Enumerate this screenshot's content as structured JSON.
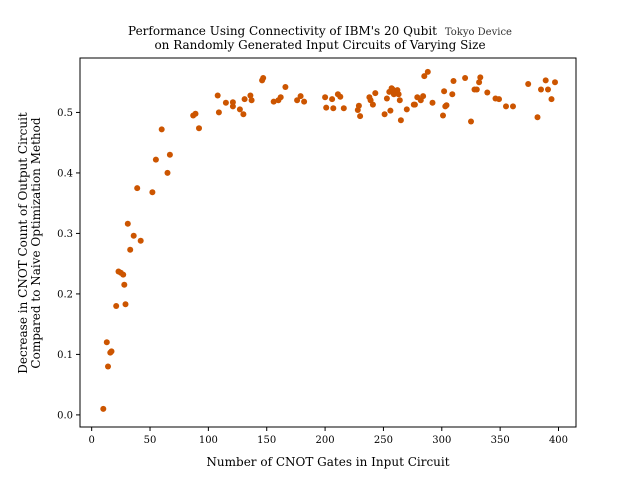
{
  "chart_data": {
    "type": "scatter",
    "title_line1": "Performance Using Connectivity of IBM's 20 Qubit",
    "title_device": "Tokyo Device",
    "title_line2": "on Randomly Generated Input Circuits of Varying Size",
    "xlabel": "Number of CNOT Gates in Input Circuit",
    "ylabel_line1": "Decrease in CNOT Count of Output Circuit",
    "ylabel_line2": "Compared to Naive Optimization Method",
    "xlim": [
      -10,
      415
    ],
    "ylim": [
      -0.02,
      0.59
    ],
    "xticks": [
      0,
      50,
      100,
      150,
      200,
      250,
      300,
      350,
      400
    ],
    "yticks": [
      0.0,
      0.1,
      0.2,
      0.3,
      0.4,
      0.5
    ],
    "xtick_labels": [
      "0",
      "50",
      "100",
      "150",
      "200",
      "250",
      "300",
      "350",
      "400"
    ],
    "ytick_labels": [
      "0.0",
      "0.1",
      "0.2",
      "0.3",
      "0.4",
      "0.5"
    ],
    "marker_color": "#cc5500",
    "points": [
      [
        10,
        0.01
      ],
      [
        13,
        0.12
      ],
      [
        14,
        0.08
      ],
      [
        16,
        0.103
      ],
      [
        17,
        0.105
      ],
      [
        21,
        0.18
      ],
      [
        23,
        0.237
      ],
      [
        25,
        0.235
      ],
      [
        27,
        0.232
      ],
      [
        28,
        0.215
      ],
      [
        29,
        0.183
      ],
      [
        31,
        0.316
      ],
      [
        33,
        0.273
      ],
      [
        36,
        0.296
      ],
      [
        39,
        0.375
      ],
      [
        42,
        0.288
      ],
      [
        52,
        0.368
      ],
      [
        55,
        0.422
      ],
      [
        60,
        0.472
      ],
      [
        65,
        0.4
      ],
      [
        67,
        0.43
      ],
      [
        87,
        0.495
      ],
      [
        89,
        0.498
      ],
      [
        92,
        0.474
      ],
      [
        108,
        0.528
      ],
      [
        109,
        0.5
      ],
      [
        115,
        0.516
      ],
      [
        121,
        0.51
      ],
      [
        121,
        0.517
      ],
      [
        127,
        0.505
      ],
      [
        130,
        0.497
      ],
      [
        131,
        0.522
      ],
      [
        136,
        0.528
      ],
      [
        137,
        0.52
      ],
      [
        146,
        0.553
      ],
      [
        147,
        0.557
      ],
      [
        156,
        0.518
      ],
      [
        160,
        0.52
      ],
      [
        162,
        0.525
      ],
      [
        166,
        0.542
      ],
      [
        176,
        0.52
      ],
      [
        179,
        0.527
      ],
      [
        182,
        0.518
      ],
      [
        200,
        0.525
      ],
      [
        201,
        0.508
      ],
      [
        206,
        0.522
      ],
      [
        207,
        0.507
      ],
      [
        211,
        0.53
      ],
      [
        213,
        0.526
      ],
      [
        216,
        0.507
      ],
      [
        228,
        0.504
      ],
      [
        229,
        0.511
      ],
      [
        230,
        0.494
      ],
      [
        238,
        0.525
      ],
      [
        239,
        0.52
      ],
      [
        241,
        0.513
      ],
      [
        243,
        0.532
      ],
      [
        251,
        0.497
      ],
      [
        253,
        0.523
      ],
      [
        255,
        0.534
      ],
      [
        256,
        0.503
      ],
      [
        257,
        0.54
      ],
      [
        258,
        0.538
      ],
      [
        259,
        0.53
      ],
      [
        260,
        0.535
      ],
      [
        261,
        0.532
      ],
      [
        262,
        0.537
      ],
      [
        263,
        0.53
      ],
      [
        264,
        0.52
      ],
      [
        265,
        0.487
      ],
      [
        270,
        0.505
      ],
      [
        276,
        0.513
      ],
      [
        277,
        0.513
      ],
      [
        279,
        0.525
      ],
      [
        282,
        0.52
      ],
      [
        284,
        0.527
      ],
      [
        285,
        0.56
      ],
      [
        288,
        0.567
      ],
      [
        292,
        0.516
      ],
      [
        301,
        0.495
      ],
      [
        302,
        0.535
      ],
      [
        303,
        0.51
      ],
      [
        304,
        0.512
      ],
      [
        309,
        0.53
      ],
      [
        310,
        0.552
      ],
      [
        320,
        0.557
      ],
      [
        325,
        0.485
      ],
      [
        328,
        0.538
      ],
      [
        330,
        0.538
      ],
      [
        332,
        0.55
      ],
      [
        333,
        0.558
      ],
      [
        339,
        0.533
      ],
      [
        346,
        0.523
      ],
      [
        349,
        0.522
      ],
      [
        355,
        0.51
      ],
      [
        361,
        0.51
      ],
      [
        374,
        0.547
      ],
      [
        382,
        0.492
      ],
      [
        385,
        0.538
      ],
      [
        389,
        0.553
      ],
      [
        391,
        0.538
      ],
      [
        394,
        0.522
      ],
      [
        397,
        0.55
      ]
    ]
  }
}
